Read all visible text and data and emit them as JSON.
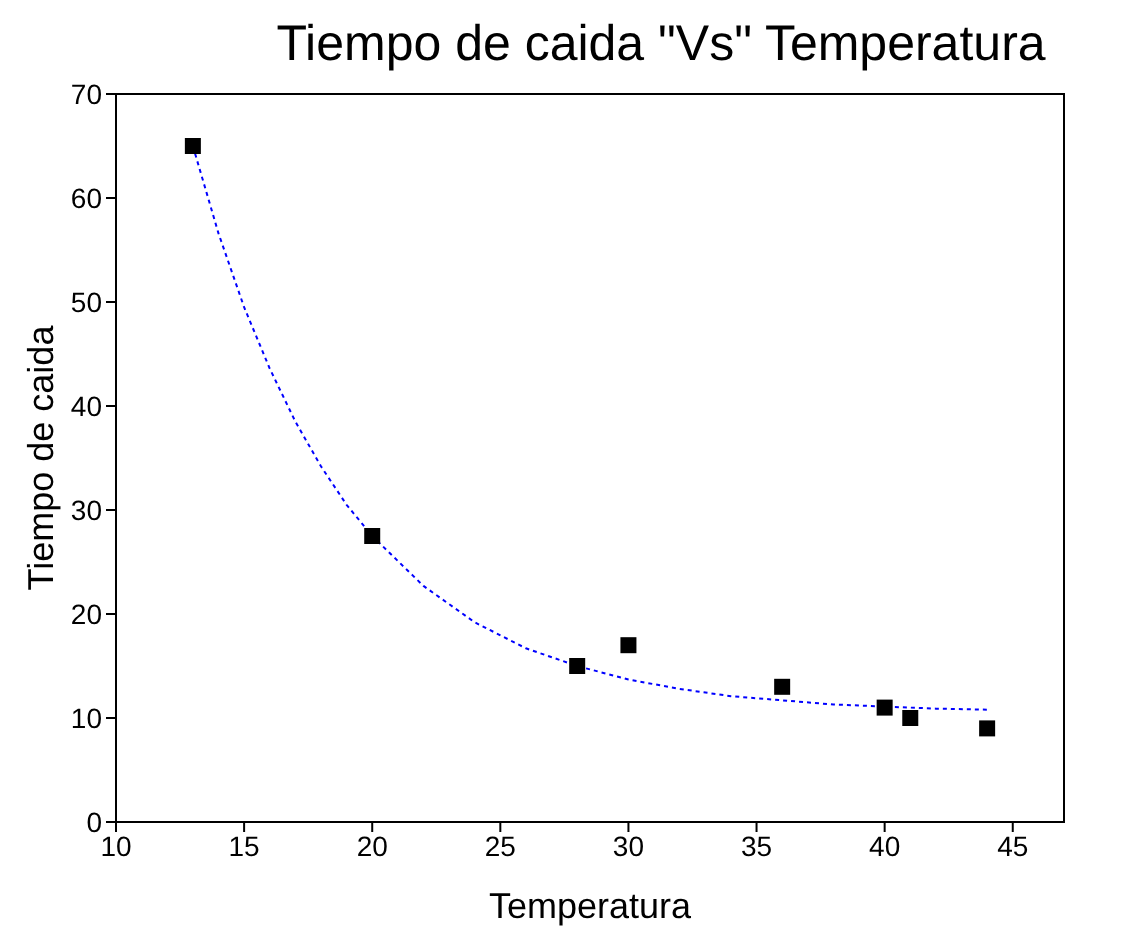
{
  "chart_data": {
    "type": "scatter",
    "title": "Tiempo de caida \"Vs\" Temperatura",
    "xlabel": "Temperatura",
    "ylabel": "Tiempo de caida",
    "xlim": [
      10,
      47
    ],
    "ylim": [
      0,
      70
    ],
    "xticks": [
      10,
      15,
      20,
      25,
      30,
      35,
      40,
      45
    ],
    "yticks": [
      0,
      10,
      20,
      30,
      40,
      50,
      60,
      70
    ],
    "grid": false,
    "series": [
      {
        "color": "#000000",
        "marker": "square",
        "x": [
          13,
          20,
          28,
          30,
          36,
          40,
          41,
          44
        ],
        "values": [
          65,
          27.5,
          15,
          17,
          13,
          11,
          10,
          9
        ]
      },
      {
        "type": "line",
        "color": "#0000ff",
        "line_style": "dotted",
        "marker": "none",
        "x": [
          13,
          14,
          15,
          16,
          17,
          18,
          19,
          20,
          22,
          24,
          26,
          28,
          30,
          32,
          34,
          36,
          38,
          40,
          42,
          44
        ],
        "values": [
          65,
          56.6,
          49.5,
          43.6,
          38.5,
          34.2,
          30.5,
          27.5,
          22.7,
          19.2,
          16.7,
          15.0,
          13.7,
          12.8,
          12.1,
          11.7,
          11.3,
          11.1,
          10.9,
          10.8
        ]
      }
    ]
  }
}
